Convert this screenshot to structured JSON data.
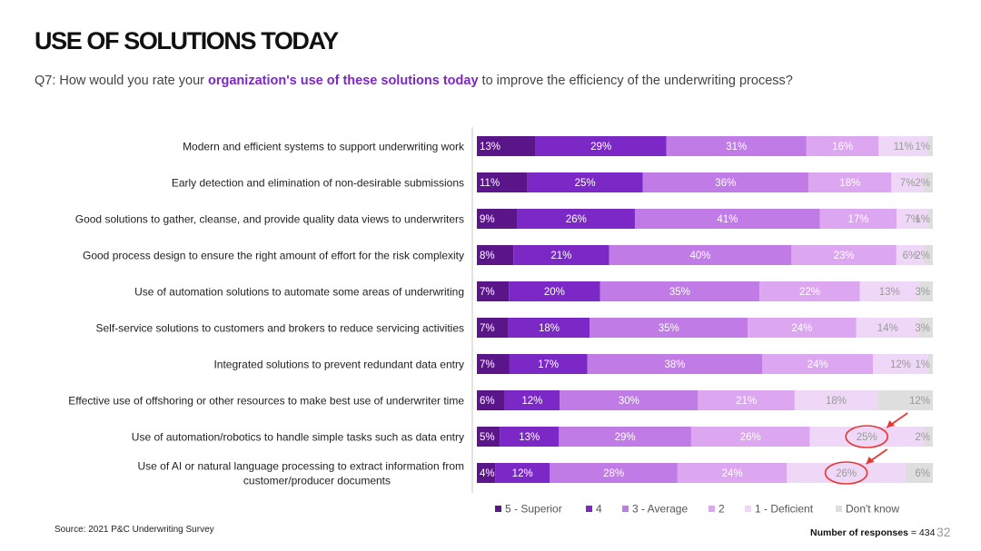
{
  "slide": {
    "title": "USE OF SOLUTIONS TODAY",
    "question_prefix": "Q7: How would you rate your ",
    "question_highlight": "organization's use of these solutions today",
    "question_suffix": " to improve the efficiency of the underwriting process?",
    "source": "Source: 2021 P&C Underwriting Survey",
    "responses_label": "Number of responses",
    "responses_value": "= 434",
    "page_number": "32"
  },
  "colors": {
    "superior": "#5a1589",
    "four": "#7b28c6",
    "average": "#c07be6",
    "two": "#dca7f0",
    "deficient": "#efd8f7",
    "dont_know": "#dedede",
    "annotation": "#e53935"
  },
  "chart_data": {
    "type": "bar",
    "orientation": "horizontal",
    "stacked": true,
    "percent_scale": true,
    "categories": [
      "Modern and efficient systems to support underwriting work",
      "Early detection and elimination of non-desirable submissions",
      "Good solutions to gather, cleanse, and provide quality data views to underwriters",
      "Good process design to ensure the right amount of effort for the risk complexity",
      "Use of automation solutions to automate some areas of underwriting",
      "Self-service solutions to customers and brokers to reduce servicing activities",
      "Integrated solutions to prevent redundant data entry",
      "Effective use of offshoring or other resources to make best use of underwriter time",
      "Use of automation/robotics to handle simple tasks such as data entry",
      "Use of AI or natural language processing to extract information from customer/producer documents"
    ],
    "series": [
      {
        "name": "5 - Superior",
        "color_key": "superior",
        "label_color": "#ffffff",
        "values": [
          13,
          11,
          9,
          8,
          7,
          7,
          7,
          6,
          5,
          4
        ]
      },
      {
        "name": "4",
        "color_key": "four",
        "label_color": "#ffffff",
        "values": [
          29,
          25,
          26,
          21,
          20,
          18,
          17,
          12,
          13,
          12
        ]
      },
      {
        "name": "3 - Average",
        "color_key": "average",
        "label_color": "#ffffff",
        "values": [
          31,
          36,
          41,
          40,
          35,
          35,
          38,
          30,
          29,
          28
        ]
      },
      {
        "name": "2",
        "color_key": "two",
        "label_color": "#ffffff",
        "values": [
          16,
          18,
          17,
          23,
          22,
          24,
          24,
          21,
          26,
          24
        ]
      },
      {
        "name": "1 - Deficient",
        "color_key": "deficient",
        "label_color": "#9a9a9a",
        "values": [
          11,
          7,
          7,
          6,
          13,
          14,
          12,
          18,
          25,
          26
        ]
      },
      {
        "name": "Don't know",
        "color_key": "dont_know",
        "label_color": "#9a9a9a",
        "values": [
          1,
          2,
          1,
          2,
          3,
          3,
          1,
          12,
          2,
          6
        ]
      }
    ],
    "highlighted": [
      {
        "category_index": 8,
        "series": "1 - Deficient",
        "value": 25
      },
      {
        "category_index": 9,
        "series": "1 - Deficient",
        "value": 26
      }
    ],
    "legend_position": "bottom",
    "value_suffix": "%"
  }
}
